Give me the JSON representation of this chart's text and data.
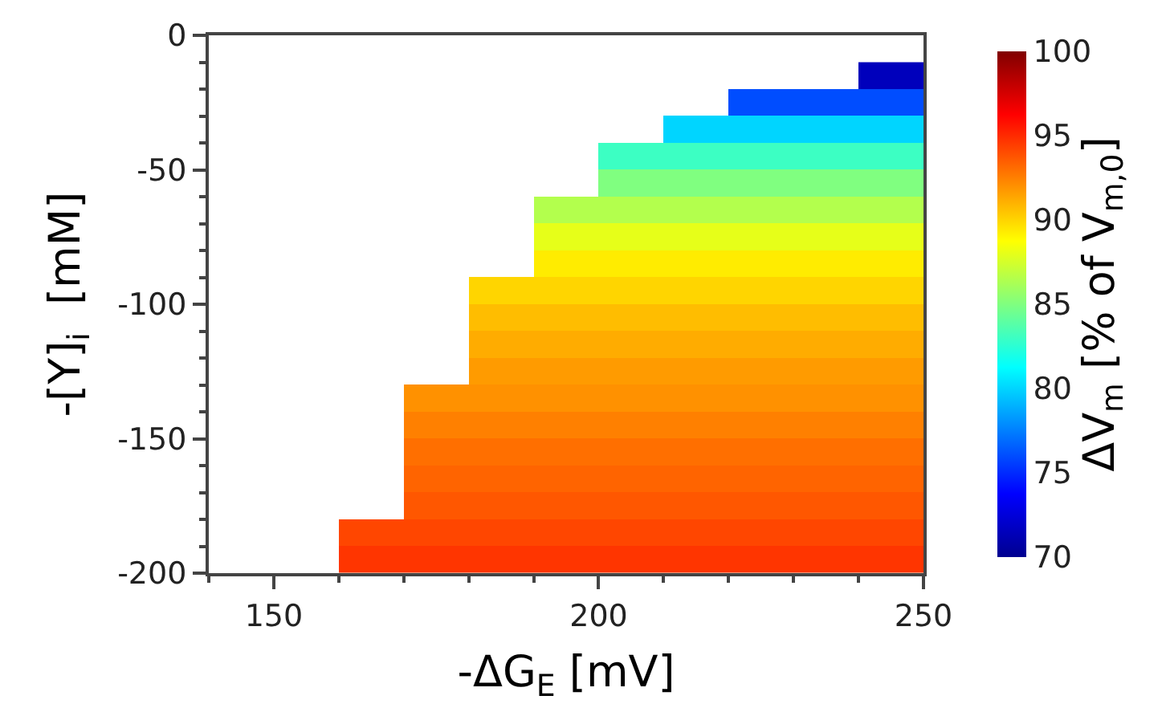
{
  "chart_data": {
    "type": "heatmap",
    "xlabel": "-ΔG$_{E}$ [mV]",
    "ylabel": "-[Y]$_{i}$  [mM]",
    "clabel": "ΔV$_{m}$ [% of V$_{m,0}$]",
    "x": [
      145,
      155,
      165,
      175,
      185,
      195,
      205,
      215,
      225,
      235,
      245
    ],
    "y": [
      -15,
      -25,
      -35,
      -45,
      -55,
      -65,
      -75,
      -85,
      -95,
      -105,
      -115,
      -125,
      -135,
      -145,
      -155,
      -165,
      -175,
      -185,
      -195
    ],
    "cells": [
      [
        null,
        null,
        null,
        null,
        null,
        null,
        null,
        null,
        null,
        null,
        71.5
      ],
      [
        null,
        null,
        null,
        null,
        null,
        null,
        null,
        null,
        76,
        76,
        76
      ],
      [
        null,
        null,
        null,
        null,
        null,
        null,
        null,
        80,
        80,
        80,
        80
      ],
      [
        null,
        null,
        null,
        null,
        null,
        null,
        83,
        83,
        83,
        83,
        83
      ],
      [
        null,
        null,
        null,
        null,
        null,
        null,
        85,
        85,
        85,
        85,
        85
      ],
      [
        null,
        null,
        null,
        null,
        null,
        86.5,
        86.5,
        86.5,
        86.5,
        86.5,
        86.5
      ],
      [
        null,
        null,
        null,
        null,
        null,
        88,
        88,
        88,
        88,
        88,
        88
      ],
      [
        null,
        null,
        null,
        null,
        null,
        89.3,
        89.3,
        89.3,
        89.3,
        89.3,
        89.3
      ],
      [
        null,
        null,
        null,
        null,
        90,
        90,
        90,
        90,
        90,
        90,
        90
      ],
      [
        null,
        null,
        null,
        null,
        90.7,
        90.7,
        90.7,
        90.7,
        90.7,
        90.7,
        90.7
      ],
      [
        null,
        null,
        null,
        null,
        91.2,
        91.2,
        91.2,
        91.2,
        91.2,
        91.2,
        91.2
      ],
      [
        null,
        null,
        null,
        null,
        91.7,
        91.7,
        91.7,
        91.7,
        91.7,
        91.7,
        91.7
      ],
      [
        null,
        null,
        null,
        92,
        92,
        92,
        92,
        92,
        92,
        92,
        92
      ],
      [
        null,
        null,
        null,
        92.5,
        92.5,
        92.5,
        92.5,
        92.5,
        92.5,
        92.5,
        92.5
      ],
      [
        null,
        null,
        null,
        93,
        93,
        93,
        93,
        93,
        93,
        93,
        93
      ],
      [
        null,
        null,
        null,
        93.3,
        93.3,
        93.3,
        93.3,
        93.3,
        93.3,
        93.3,
        93.3
      ],
      [
        null,
        null,
        null,
        93.7,
        93.7,
        93.7,
        93.7,
        93.7,
        93.7,
        93.7,
        93.7
      ],
      [
        null,
        null,
        94.2,
        94.2,
        94.2,
        94.2,
        94.2,
        94.2,
        94.2,
        94.2,
        94.2
      ],
      [
        null,
        null,
        94.7,
        94.7,
        94.7,
        94.7,
        94.7,
        94.7,
        94.7,
        94.7,
        94.7
      ]
    ],
    "xlim": [
      140,
      250
    ],
    "xticks": [
      150,
      200,
      250
    ],
    "ylim": [
      -200,
      0
    ],
    "yticks": [
      -200,
      -150,
      -100,
      -50,
      0
    ],
    "clim": [
      70,
      100
    ],
    "cticks": [
      70,
      75,
      80,
      85,
      90,
      95,
      100
    ]
  }
}
